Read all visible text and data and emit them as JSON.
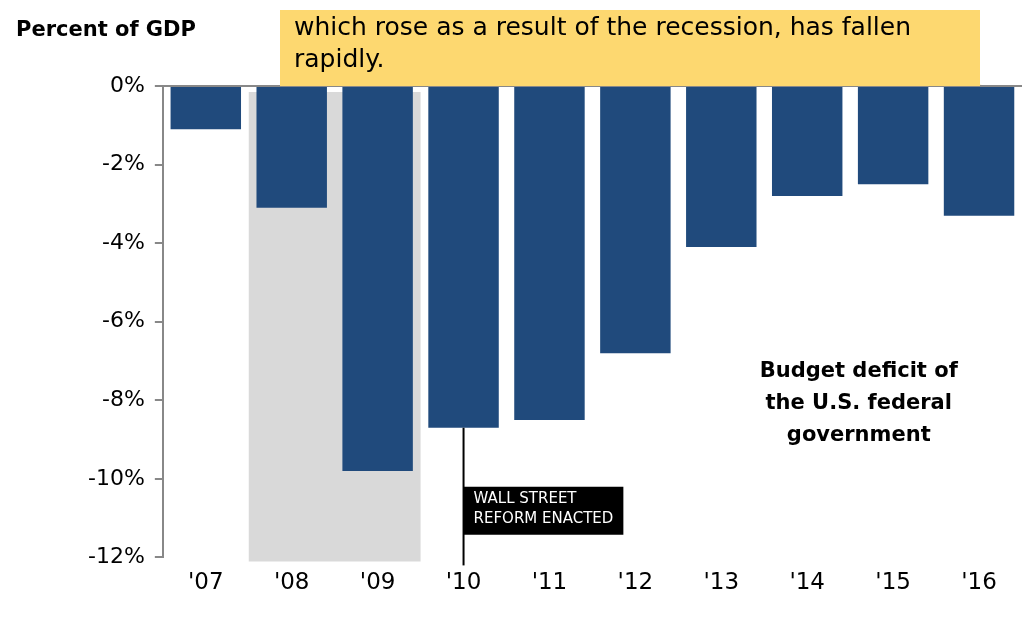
{
  "chart_data": {
    "type": "bar",
    "ylabel": "Percent of GDP",
    "categories": [
      "'07",
      "'08",
      "'09",
      "'10",
      "'11",
      "'12",
      "'13",
      "'14",
      "'15",
      "'16"
    ],
    "values": [
      -1.1,
      -3.1,
      -9.8,
      -8.7,
      -8.5,
      -6.8,
      -4.1,
      -2.8,
      -2.5,
      -3.3
    ],
    "color": "#204a7c",
    "ylim": [
      -12,
      0
    ],
    "yticks": [
      {
        "value": 0,
        "label": "0%"
      },
      {
        "value": -2,
        "label": "-2%"
      },
      {
        "value": -4,
        "label": "-4%"
      },
      {
        "value": -6,
        "label": "-6%"
      },
      {
        "value": -8,
        "label": "-8%"
      },
      {
        "value": -10,
        "label": "-10%"
      },
      {
        "value": -12,
        "label": "-12%"
      }
    ],
    "grid": false,
    "legend": false,
    "bands": [
      {
        "axis": "x",
        "from": "'08",
        "to": "'09",
        "color": "#d9d9d9"
      }
    ],
    "ref_lines": [
      {
        "axis": "x",
        "value": "'10",
        "label": "WALL STREET REFORM ENACTED",
        "color": "#000000"
      }
    ],
    "annotations": [
      "which rose as a result of the recession, has fallen rapidly.",
      "Budget deficit of the U.S. federal government"
    ]
  }
}
